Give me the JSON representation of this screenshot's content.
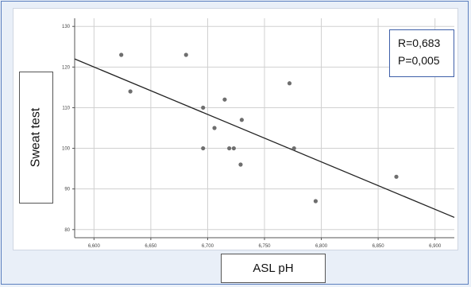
{
  "chart_data": {
    "type": "scatter",
    "xlabel": "ASL pH",
    "ylabel": "Sweat test",
    "xlim": [
      6.583,
      6.917
    ],
    "ylim": [
      78,
      132
    ],
    "x_ticks": [
      "6,600",
      "6,650",
      "6,700",
      "6,750",
      "6,800",
      "6,850",
      "6,900"
    ],
    "x_tick_values": [
      6.6,
      6.65,
      6.7,
      6.75,
      6.8,
      6.85,
      6.9
    ],
    "y_ticks": [
      "80",
      "90",
      "100",
      "110",
      "120",
      "130"
    ],
    "y_tick_values": [
      80,
      90,
      100,
      110,
      120,
      130
    ],
    "grid": true,
    "points": [
      {
        "x": 6.624,
        "y": 123
      },
      {
        "x": 6.632,
        "y": 114
      },
      {
        "x": 6.681,
        "y": 123
      },
      {
        "x": 6.696,
        "y": 110
      },
      {
        "x": 6.696,
        "y": 100
      },
      {
        "x": 6.706,
        "y": 105
      },
      {
        "x": 6.715,
        "y": 112
      },
      {
        "x": 6.719,
        "y": 100
      },
      {
        "x": 6.723,
        "y": 100
      },
      {
        "x": 6.729,
        "y": 96
      },
      {
        "x": 6.73,
        "y": 107
      },
      {
        "x": 6.772,
        "y": 116
      },
      {
        "x": 6.776,
        "y": 100
      },
      {
        "x": 6.795,
        "y": 87
      },
      {
        "x": 6.866,
        "y": 93
      }
    ],
    "fit_line": {
      "x": [
        6.583,
        6.917
      ],
      "y": [
        122,
        83
      ]
    },
    "annotation": {
      "r_text": "R=0,683",
      "p_text": "P=0,005"
    }
  }
}
